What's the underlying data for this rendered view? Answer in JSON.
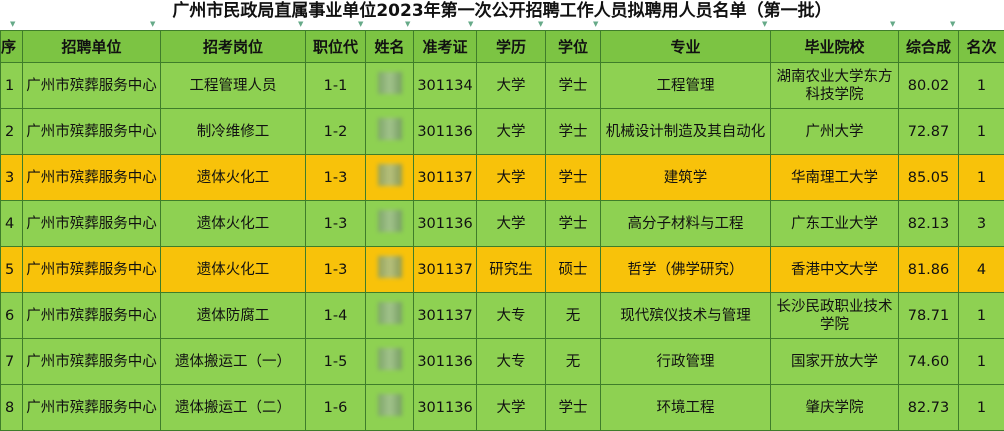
{
  "title": "广州市民政局直属事业单位2023年第一次公开招聘工作人员拟聘用人员名单（第一批）",
  "colors": {
    "header": "#7cc443",
    "row": "#8ed152",
    "highlight": "#f8c20a"
  },
  "headers": [
    "序",
    "招聘单位",
    "招考岗位",
    "职位代",
    "姓名",
    "准考证",
    "学历",
    "学位",
    "专业",
    "毕业院校",
    "综合成",
    "名次"
  ],
  "rows": [
    {
      "no": "1",
      "unit": "广州市殡葬服务中心",
      "post": "工程管理人员",
      "code": "1-1",
      "exam": "301134",
      "edu": "大学",
      "degree": "学士",
      "major": "工程管理",
      "school": "湖南农业大学东方科技学院",
      "score": "80.02",
      "rank": "1",
      "highlight": false
    },
    {
      "no": "2",
      "unit": "广州市殡葬服务中心",
      "post": "制冷维修工",
      "code": "1-2",
      "exam": "301136",
      "edu": "大学",
      "degree": "学士",
      "major": "机械设计制造及其自动化",
      "school": "广州大学",
      "score": "72.87",
      "rank": "1",
      "highlight": false
    },
    {
      "no": "3",
      "unit": "广州市殡葬服务中心",
      "post": "遗体火化工",
      "code": "1-3",
      "exam": "301137",
      "edu": "大学",
      "degree": "学士",
      "major": "建筑学",
      "school": "华南理工大学",
      "score": "85.05",
      "rank": "1",
      "highlight": true
    },
    {
      "no": "4",
      "unit": "广州市殡葬服务中心",
      "post": "遗体火化工",
      "code": "1-3",
      "exam": "301136",
      "edu": "大学",
      "degree": "学士",
      "major": "高分子材料与工程",
      "school": "广东工业大学",
      "score": "82.13",
      "rank": "3",
      "highlight": false
    },
    {
      "no": "5",
      "unit": "广州市殡葬服务中心",
      "post": "遗体火化工",
      "code": "1-3",
      "exam": "301137",
      "edu": "研究生",
      "degree": "硕士",
      "major": "哲学（佛学研究）",
      "school": "香港中文大学",
      "score": "81.86",
      "rank": "4",
      "highlight": true
    },
    {
      "no": "6",
      "unit": "广州市殡葬服务中心",
      "post": "遗体防腐工",
      "code": "1-4",
      "exam": "301137",
      "edu": "大专",
      "degree": "无",
      "major": "现代殡仪技术与管理",
      "school": "长沙民政职业技术学院",
      "score": "78.71",
      "rank": "1",
      "highlight": false
    },
    {
      "no": "7",
      "unit": "广州市殡葬服务中心",
      "post": "遗体搬运工（一）",
      "code": "1-5",
      "exam": "301136",
      "edu": "大专",
      "degree": "无",
      "major": "行政管理",
      "school": "国家开放大学",
      "score": "74.60",
      "rank": "1",
      "highlight": false
    },
    {
      "no": "8",
      "unit": "广州市殡葬服务中心",
      "post": "遗体搬运工（二）",
      "code": "1-6",
      "exam": "301136",
      "edu": "大学",
      "degree": "学士",
      "major": "环境工程",
      "school": "肇庆学院",
      "score": "82.73",
      "rank": "1",
      "highlight": false
    }
  ]
}
